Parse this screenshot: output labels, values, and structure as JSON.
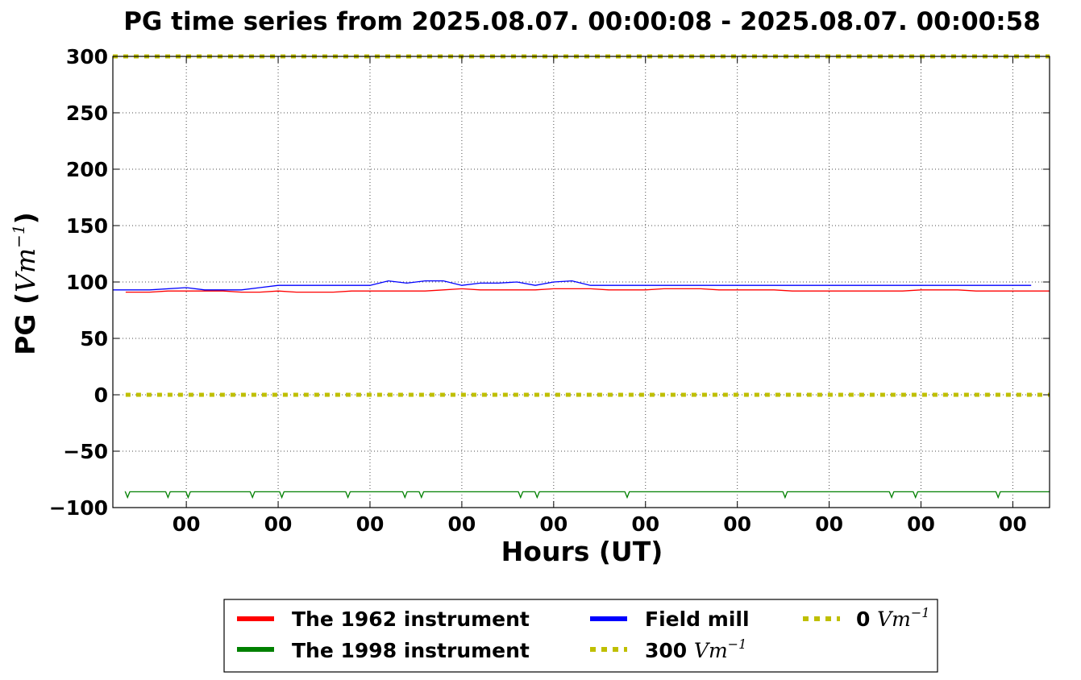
{
  "chart_data": {
    "type": "line",
    "title": "PG time series from 2025.08.07. 00:00:08 - 2025.08.07. 00:00:58",
    "xlabel": "Hours (UT)",
    "ylabel_prefix": "PG (",
    "ylabel_unit_base": "Vm",
    "ylabel_unit_exp": "−1",
    "ylabel_suffix": ")",
    "x_ticks": [
      "00",
      "00",
      "00",
      "00",
      "00",
      "00",
      "00",
      "00",
      "00",
      "00"
    ],
    "y_ticks": [
      "300",
      "250",
      "200",
      "150",
      "100",
      "50",
      "0",
      "−50",
      "−100"
    ],
    "y_tick_values": [
      300,
      250,
      200,
      150,
      100,
      50,
      0,
      -50,
      -100
    ],
    "ylim": [
      -100,
      300
    ],
    "xlim": [
      0,
      51
    ],
    "x_tick_values": [
      4,
      9,
      14,
      19,
      24,
      29,
      34,
      39,
      44,
      49
    ],
    "grid": true,
    "legend_position": "below",
    "legend": [
      {
        "label": "The 1962 instrument",
        "color": "#ff0000",
        "style": "solid"
      },
      {
        "label": "The 1998 instrument",
        "color": "#008000",
        "style": "solid"
      },
      {
        "label": "Field mill",
        "color": "#0000ff",
        "style": "solid"
      },
      {
        "label_prefix": "300 ",
        "unit_base": "Vm",
        "unit_exp": "−1",
        "color": "#bfbf00",
        "style": "dotted"
      },
      {
        "label_prefix": "0 ",
        "unit_base": "Vm",
        "unit_exp": "−1",
        "color": "#bfbf00",
        "style": "dotted"
      }
    ],
    "series": [
      {
        "name": "The 1962 instrument",
        "color": "#ff0000",
        "x": [
          0.7,
          1,
          2,
          3,
          4,
          5,
          6,
          7,
          8,
          9,
          10,
          11,
          12,
          13,
          14,
          15,
          16,
          17,
          18,
          19,
          20,
          21,
          22,
          23,
          24,
          25,
          26,
          27,
          28,
          29,
          30,
          31,
          32,
          33,
          34,
          35,
          36,
          37,
          38,
          39,
          40,
          41,
          42,
          43,
          44,
          45,
          46,
          47,
          48,
          49,
          50,
          51
        ],
        "y": [
          91,
          91,
          91,
          92,
          92,
          92,
          92,
          91,
          91,
          92,
          91,
          91,
          91,
          92,
          92,
          92,
          92,
          92,
          93,
          94,
          93,
          93,
          93,
          93,
          94,
          94,
          94,
          93,
          93,
          93,
          94,
          94,
          94,
          93,
          93,
          93,
          93,
          92,
          92,
          92,
          92,
          92,
          92,
          92,
          93,
          93,
          93,
          92,
          92,
          92,
          92,
          92
        ]
      },
      {
        "name": "The 1998 instrument",
        "color": "#008000",
        "x": [
          0.7,
          51
        ],
        "y": [
          -86,
          -86
        ],
        "dips_at": [
          0.8,
          3,
          4.1,
          7.6,
          9.2,
          12.8,
          15.9,
          16.8,
          22.2,
          23.1,
          28,
          36.6,
          42.4,
          43.7,
          48.2
        ]
      },
      {
        "name": "Field mill",
        "color": "#0000ff",
        "x": [
          0,
          2,
          4,
          5,
          7,
          8,
          9,
          14,
          15,
          16,
          17,
          18,
          19,
          20,
          21,
          22,
          23,
          24,
          25,
          26,
          30,
          35,
          40,
          45,
          50
        ],
        "y": [
          93,
          93,
          95,
          93,
          93,
          95,
          97,
          97,
          101,
          99,
          101,
          101,
          97,
          99,
          99,
          100,
          97,
          100,
          101,
          97,
          97,
          97,
          97,
          97,
          97
        ]
      },
      {
        "name": "300 Vm-1",
        "color": "#bfbf00",
        "x": [
          0,
          51
        ],
        "y": [
          300,
          300
        ]
      },
      {
        "name": "0 Vm-1",
        "color": "#bfbf00",
        "x": [
          0.7,
          51
        ],
        "y": [
          0,
          0
        ]
      }
    ]
  }
}
